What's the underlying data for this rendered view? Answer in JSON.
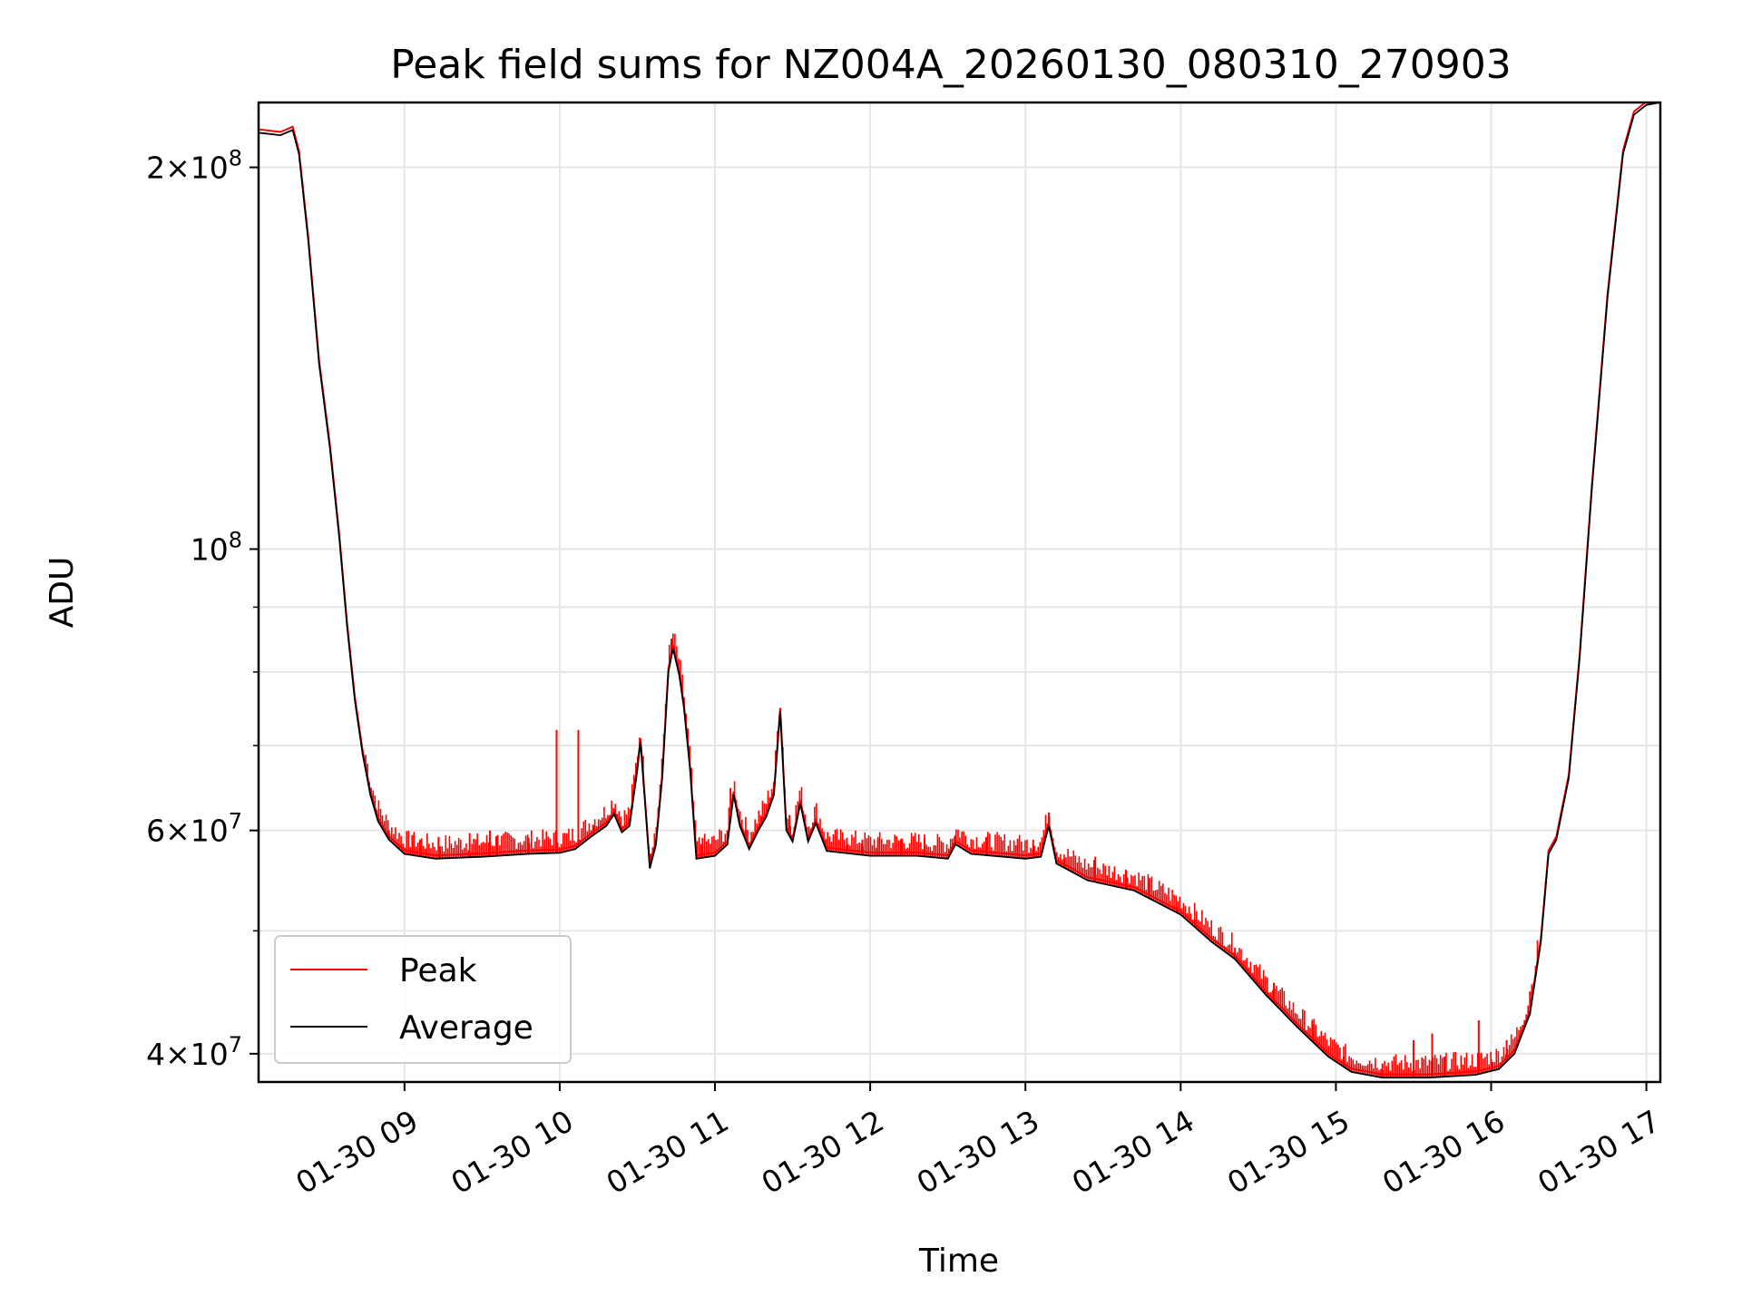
{
  "chart_data": {
    "type": "line",
    "title": "Peak field sums for NZ004A_20260130_080310_270903",
    "xlabel": "Time",
    "ylabel": "ADU",
    "yscale": "log",
    "grid": true,
    "xlim": [
      8.06,
      17.09
    ],
    "ylim": [
      38000000,
      225000000
    ],
    "x_ticks": [
      {
        "value": 9,
        "label": "01-30 09"
      },
      {
        "value": 10,
        "label": "01-30 10"
      },
      {
        "value": 11,
        "label": "01-30 11"
      },
      {
        "value": 12,
        "label": "01-30 12"
      },
      {
        "value": 13,
        "label": "01-30 13"
      },
      {
        "value": 14,
        "label": "01-30 14"
      },
      {
        "value": 15,
        "label": "01-30 15"
      },
      {
        "value": 16,
        "label": "01-30 16"
      },
      {
        "value": 17,
        "label": "01-30 17"
      }
    ],
    "y_major_ticks": [
      {
        "value": 40000000,
        "mantissa": "4",
        "exponent": "7"
      },
      {
        "value": 60000000,
        "mantissa": "6",
        "exponent": "7"
      },
      {
        "value": 100000000,
        "mantissa": "",
        "exponent": "8"
      },
      {
        "value": 200000000,
        "mantissa": "2",
        "exponent": "8"
      }
    ],
    "y_minor_ticks": [
      50000000,
      70000000,
      80000000,
      90000000
    ],
    "legend": {
      "position": "lower-left",
      "entries": [
        "Peak",
        "Average"
      ]
    },
    "series": [
      {
        "name": "Average",
        "color": "#000000",
        "points": [
          [
            8.06,
            213000000
          ],
          [
            8.2,
            212000000
          ],
          [
            8.28,
            214000000
          ],
          [
            8.32,
            205000000
          ],
          [
            8.38,
            175000000
          ],
          [
            8.45,
            140000000
          ],
          [
            8.52,
            120000000
          ],
          [
            8.58,
            102000000
          ],
          [
            8.63,
            87000000
          ],
          [
            8.68,
            76000000
          ],
          [
            8.73,
            69000000
          ],
          [
            8.78,
            64000000
          ],
          [
            8.83,
            61000000
          ],
          [
            8.9,
            59000000
          ],
          [
            9.0,
            57500000
          ],
          [
            9.2,
            57000000
          ],
          [
            9.5,
            57200000
          ],
          [
            9.8,
            57500000
          ],
          [
            10.0,
            57600000
          ],
          [
            10.1,
            58000000
          ],
          [
            10.2,
            59300000
          ],
          [
            10.3,
            60500000
          ],
          [
            10.35,
            61800000
          ],
          [
            10.4,
            59800000
          ],
          [
            10.45,
            60500000
          ],
          [
            10.5,
            67000000
          ],
          [
            10.52,
            70500000
          ],
          [
            10.55,
            63000000
          ],
          [
            10.58,
            56000000
          ],
          [
            10.62,
            58500000
          ],
          [
            10.66,
            66000000
          ],
          [
            10.7,
            80000000
          ],
          [
            10.73,
            83500000
          ],
          [
            10.77,
            79500000
          ],
          [
            10.8,
            75000000
          ],
          [
            10.84,
            67000000
          ],
          [
            10.88,
            57000000
          ],
          [
            11.0,
            57300000
          ],
          [
            11.08,
            58500000
          ],
          [
            11.12,
            64000000
          ],
          [
            11.16,
            60500000
          ],
          [
            11.22,
            58000000
          ],
          [
            11.28,
            60000000
          ],
          [
            11.33,
            61500000
          ],
          [
            11.38,
            64000000
          ],
          [
            11.42,
            74500000
          ],
          [
            11.46,
            60000000
          ],
          [
            11.5,
            58800000
          ],
          [
            11.55,
            63000000
          ],
          [
            11.6,
            58800000
          ],
          [
            11.65,
            60800000
          ],
          [
            11.72,
            57800000
          ],
          [
            12.0,
            57300000
          ],
          [
            12.3,
            57300000
          ],
          [
            12.5,
            57000000
          ],
          [
            12.55,
            58500000
          ],
          [
            12.65,
            57500000
          ],
          [
            13.0,
            57000000
          ],
          [
            13.1,
            57200000
          ],
          [
            13.15,
            60500000
          ],
          [
            13.2,
            56500000
          ],
          [
            13.4,
            54800000
          ],
          [
            13.7,
            53800000
          ],
          [
            14.0,
            51500000
          ],
          [
            14.2,
            49000000
          ],
          [
            14.35,
            47500000
          ],
          [
            14.55,
            44500000
          ],
          [
            14.75,
            42000000
          ],
          [
            14.95,
            39800000
          ],
          [
            15.1,
            38700000
          ],
          [
            15.3,
            38300000
          ],
          [
            15.6,
            38300000
          ],
          [
            15.9,
            38500000
          ],
          [
            16.05,
            38900000
          ],
          [
            16.15,
            40000000
          ],
          [
            16.25,
            43000000
          ],
          [
            16.32,
            49000000
          ],
          [
            16.37,
            57500000
          ],
          [
            16.42,
            59000000
          ],
          [
            16.5,
            66000000
          ],
          [
            16.57,
            82000000
          ],
          [
            16.65,
            112000000
          ],
          [
            16.75,
            158000000
          ],
          [
            16.85,
            205000000
          ],
          [
            16.92,
            220000000
          ],
          [
            17.0,
            224000000
          ],
          [
            17.09,
            225000000
          ]
        ]
      },
      {
        "name": "Peak",
        "color": "#ff0000",
        "spikes": [
          [
            8.9,
            60000000
          ],
          [
            9.05,
            59500000
          ],
          [
            9.1,
            59000000
          ],
          [
            9.22,
            59300000
          ],
          [
            9.42,
            59700000
          ],
          [
            9.55,
            60000000
          ],
          [
            9.6,
            59500000
          ],
          [
            9.8,
            59200000
          ],
          [
            9.98,
            72000000
          ],
          [
            10.12,
            72000000
          ],
          [
            10.22,
            60500000
          ],
          [
            10.6,
            58200000
          ],
          [
            10.72,
            85000000
          ],
          [
            10.92,
            59200000
          ],
          [
            11.1,
            64800000
          ],
          [
            11.2,
            60000000
          ],
          [
            11.3,
            61500000
          ],
          [
            11.48,
            61700000
          ],
          [
            11.65,
            61200000
          ],
          [
            11.85,
            59200000
          ],
          [
            11.95,
            59000000
          ],
          [
            12.05,
            59100000
          ],
          [
            12.2,
            59100000
          ],
          [
            12.35,
            59200000
          ],
          [
            12.55,
            59500000
          ],
          [
            12.75,
            59200000
          ],
          [
            12.95,
            59100000
          ],
          [
            13.05,
            59000000
          ],
          [
            13.15,
            62000000
          ],
          [
            13.25,
            57000000
          ],
          [
            13.45,
            57200000
          ],
          [
            13.65,
            55800000
          ],
          [
            13.8,
            55000000
          ],
          [
            13.98,
            52200000
          ],
          [
            14.1,
            51000000
          ],
          [
            14.35,
            48500000
          ],
          [
            14.6,
            45500000
          ],
          [
            14.85,
            42200000
          ],
          [
            15.05,
            39800000
          ],
          [
            15.3,
            39300000
          ],
          [
            15.5,
            41000000
          ],
          [
            15.62,
            41500000
          ],
          [
            15.7,
            39800000
          ],
          [
            15.92,
            42500000
          ],
          [
            16.0,
            39600000
          ],
          [
            16.1,
            41000000
          ],
          [
            16.25,
            44800000
          ]
        ]
      }
    ]
  }
}
